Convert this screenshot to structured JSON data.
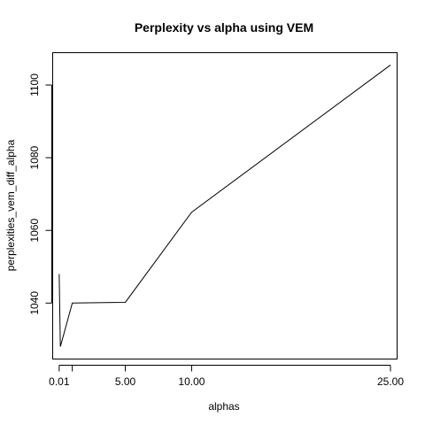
{
  "chart_data": {
    "type": "line",
    "title": "Perplexity vs alpha using VEM",
    "xlabel": "alphas",
    "ylabel": "perplexities_vem_diff_alpha",
    "x": [
      0.01,
      0.1,
      1,
      5,
      10,
      25
    ],
    "y": [
      1048,
      1028,
      1040,
      1040.2,
      1065,
      1105.5
    ],
    "xlim": [
      -0.48,
      25.5
    ],
    "ylim": [
      1024.6,
      1108.9
    ],
    "x_ticks": [
      0.01,
      1,
      5,
      10,
      25
    ],
    "x_tick_labels": [
      "0.01",
      "",
      "5.00",
      "10.00",
      "25.00"
    ],
    "y_ticks": [
      1040,
      1060,
      1080,
      1100
    ],
    "y_tick_labels": [
      "1040",
      "1060",
      "1080",
      "1100"
    ],
    "grid": false,
    "legend": "none"
  }
}
